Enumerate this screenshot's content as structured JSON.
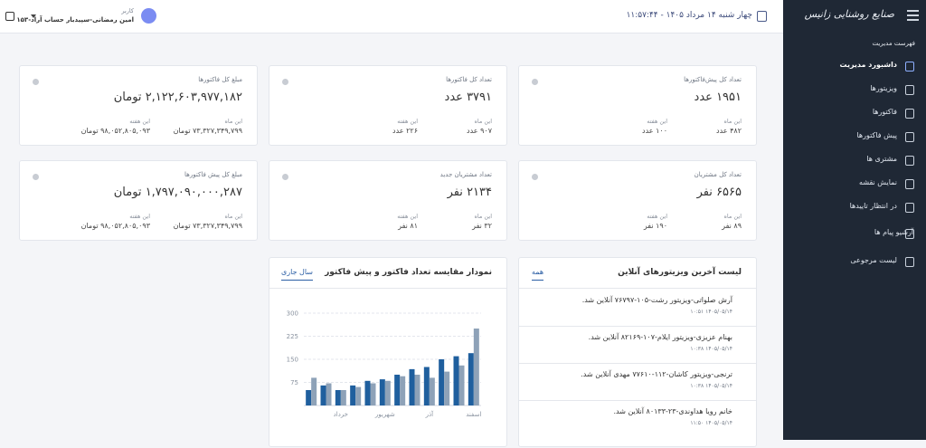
{
  "sidebar": {
    "logo": "صنایع روشنایی زانیس",
    "section_title": "فهرست مدیریت",
    "menu": [
      "داشبورد مدیریت",
      "ویزیتورها",
      "فاکتورها",
      "پیش فاکتورها",
      "مشتری ها",
      "نمایش نقشه",
      "در انتظار تاییدها",
      "آرشیو پیام ها",
      "لیست مرجوعی"
    ]
  },
  "header": {
    "date": "چهار شنبه ۱۴ مرداد ۱۴۰۵ - ۱۱:۵۷:۴۴",
    "user_role": "کاربر",
    "user_name": "امین رمضانی-سپیدبار حساب آراد-۱۵۳"
  },
  "cards": [
    {
      "title": "تعداد کل پیش‌فاکتورها",
      "total": "۱۹۵۱ عدد",
      "stats": [
        {
          "label": "این ماه",
          "value": "۴۸۲ عدد"
        },
        {
          "label": "این هفته",
          "value": "۱۰۰ عدد"
        }
      ]
    },
    {
      "title": "تعداد کل فاکتورها",
      "total": "۳۷۹۱ عدد",
      "stats": [
        {
          "label": "این ماه",
          "value": "۹۰۷ عدد"
        },
        {
          "label": "این هفته",
          "value": "۲۲۶ عدد"
        }
      ]
    },
    {
      "title": "مبلغ کل فاکتورها",
      "total": "۲,۱۲۲,۶۰۳,۹۷۷,۱۸۲ تومان",
      "stats": [
        {
          "label": "این ماه",
          "value": "۷۳,۳۲۷,۳۴۹,۷۹۹ تومان"
        },
        {
          "label": "این هفته",
          "value": "۹۸,۰۵۲,۸۰۵,۰۹۳ تومان"
        }
      ]
    },
    {
      "title": "تعداد کل مشتریان",
      "total": "۶۵۶۵ نفر",
      "stats": [
        {
          "label": "این ماه",
          "value": "۸۹ نفر"
        },
        {
          "label": "این هفته",
          "value": "۱۹۰ نفر"
        }
      ]
    },
    {
      "title": "تعداد مشتریان جدید",
      "total": "۲۱۳۴ نفر",
      "stats": [
        {
          "label": "این ماه",
          "value": "۳۲ نفر"
        },
        {
          "label": "این هفته",
          "value": "۸۱ نفر"
        }
      ]
    },
    {
      "title": "مبلغ کل پیش فاکتورها",
      "total": "۱,۷۹۷,۰۹۰,۰۰۰,۲۸۷ تومان",
      "stats": [
        {
          "label": "این ماه",
          "value": "۷۳,۳۲۷,۳۴۹,۷۹۹ تومان"
        },
        {
          "label": "این هفته",
          "value": "۹۸,۰۵۲,۸۰۵,۰۹۳ تومان"
        }
      ]
    }
  ],
  "online_visitors": {
    "title": "لیست آخرین ویزیتورهای آنلاین",
    "tab": "همه",
    "items": [
      {
        "text": "آرش صلواتی-ویزیتور رشت-۱۰۵-۷۶۷۹۷ آنلاین شد.",
        "time": "۱۴۰۵/۰۵/۱۴ ۱۰:۵۱"
      },
      {
        "text": "بهنام عزیزی-ویزیتور ایلام-۱۰۷-۸۲۱۶۹ آنلاین شد.",
        "time": "۱۴۰۵/۰۵/۱۴ ۱۰:۳۸"
      },
      {
        "text": "ترنجی-ویزیتور کاشان-۱۱۲-۷۷۶۱۰ مهدی آنلاین شد.",
        "time": "۱۴۰۵/۰۵/۱۴ ۱۰:۳۸"
      },
      {
        "text": "خانم رویا هداوندی-۲۳-۸۰۱۳۳ آنلاین شد.",
        "time": "۱۴۰۵/۰۵/۱۴ ۱۱:۵۰"
      }
    ]
  },
  "chart_panel": {
    "title": "نمودار مقایسه تعداد فاکتور و پیش فاکتور",
    "tab": "سال جاری"
  },
  "chart_data": {
    "type": "bar",
    "categories": [
      null,
      null,
      "خرداد",
      null,
      null,
      "شهریور",
      null,
      null,
      "آذر",
      null,
      null,
      "اسفند"
    ],
    "series": [
      {
        "color": "#1f5f9e",
        "values": [
          50,
          65,
          50,
          65,
          80,
          85,
          100,
          118,
          125,
          150,
          160,
          170
        ]
      },
      {
        "color": "#8ea2b8",
        "values": [
          90,
          72,
          50,
          60,
          72,
          80,
          95,
          100,
          90,
          110,
          130,
          250
        ]
      }
    ],
    "ylim": [
      0,
      300
    ],
    "yticks": [
      75,
      150,
      225,
      300
    ],
    "grid": true
  }
}
